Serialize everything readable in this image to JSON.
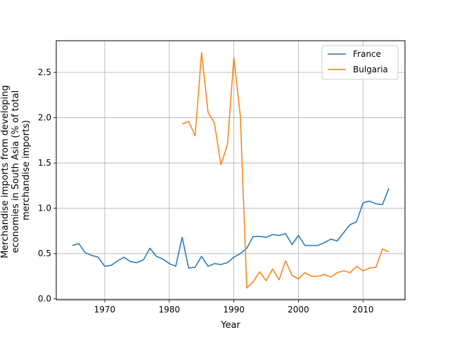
{
  "chart_data": {
    "type": "line",
    "title": "",
    "xlabel": "Year",
    "ylabel_lines": [
      "Merchandise imports from developing",
      "economies in South Asia (% of total",
      "merchandise imports)"
    ],
    "xlim": [
      1962.5,
      2016.5
    ],
    "ylim": [
      -0.01,
      2.85
    ],
    "xticks": [
      1970,
      1980,
      1990,
      2000,
      2010
    ],
    "yticks": [
      0.0,
      0.5,
      1.0,
      1.5,
      2.0,
      2.5
    ],
    "ytick_labels": [
      "0.0",
      "0.5",
      "1.0",
      "1.5",
      "2.0",
      "2.5"
    ],
    "grid": true,
    "legend_position": "top-right",
    "series": [
      {
        "name": "France",
        "color": "#1f77b4",
        "x": [
          1965,
          1966,
          1967,
          1968,
          1969,
          1970,
          1971,
          1972,
          1973,
          1974,
          1975,
          1976,
          1977,
          1978,
          1979,
          1980,
          1981,
          1982,
          1983,
          1984,
          1985,
          1986,
          1987,
          1988,
          1989,
          1990,
          1991,
          1992,
          1993,
          1994,
          1995,
          1996,
          1997,
          1998,
          1999,
          2000,
          2001,
          2002,
          2003,
          2004,
          2005,
          2006,
          2007,
          2008,
          2009,
          2010,
          2011,
          2012,
          2013,
          2014
        ],
        "y": [
          0.59,
          0.61,
          0.51,
          0.48,
          0.46,
          0.36,
          0.37,
          0.42,
          0.46,
          0.41,
          0.4,
          0.43,
          0.56,
          0.47,
          0.44,
          0.39,
          0.36,
          0.68,
          0.34,
          0.35,
          0.47,
          0.36,
          0.39,
          0.38,
          0.4,
          0.46,
          0.5,
          0.56,
          0.69,
          0.69,
          0.68,
          0.71,
          0.7,
          0.72,
          0.6,
          0.7,
          0.59,
          0.59,
          0.59,
          0.62,
          0.66,
          0.64,
          0.73,
          0.82,
          0.85,
          1.06,
          1.08,
          1.05,
          1.04,
          1.22
        ]
      },
      {
        "name": "Bulgaria",
        "color": "#ff7f0e",
        "x": [
          1982,
          1983,
          1984,
          1985,
          1986,
          1987,
          1988,
          1989,
          1990,
          1991,
          1992,
          1993,
          1994,
          1995,
          1996,
          1997,
          1998,
          1999,
          2000,
          2001,
          2002,
          2003,
          2004,
          2005,
          2006,
          2007,
          2008,
          2009,
          2010,
          2011,
          2012,
          2013,
          2014
        ],
        "y": [
          1.93,
          1.96,
          1.8,
          2.72,
          2.06,
          1.94,
          1.48,
          1.7,
          2.66,
          2.02,
          0.12,
          0.19,
          0.3,
          0.2,
          0.33,
          0.21,
          0.42,
          0.26,
          0.22,
          0.29,
          0.25,
          0.25,
          0.27,
          0.24,
          0.29,
          0.31,
          0.29,
          0.36,
          0.31,
          0.34,
          0.35,
          0.55,
          0.52
        ]
      }
    ]
  }
}
